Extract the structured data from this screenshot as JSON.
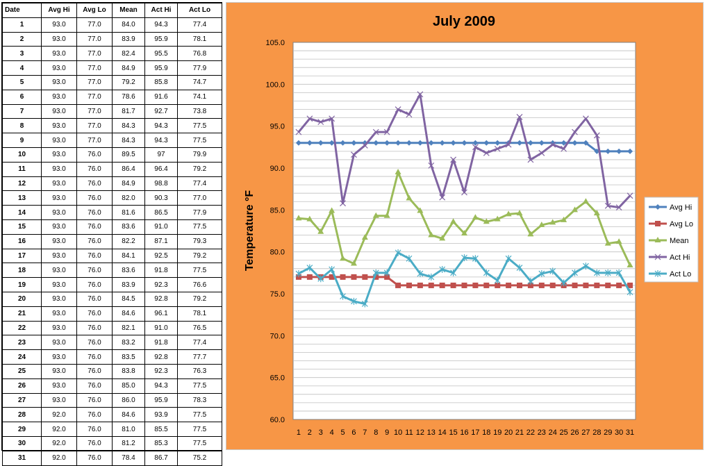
{
  "table": {
    "headers": [
      "Date",
      "Avg Hi",
      "Avg Lo",
      "Mean",
      "Act Hi",
      "Act Lo"
    ],
    "rows": [
      [
        "1",
        "93.0",
        "77.0",
        "84.0",
        "94.3",
        "77.4"
      ],
      [
        "2",
        "93.0",
        "77.0",
        "83.9",
        "95.9",
        "78.1"
      ],
      [
        "3",
        "93.0",
        "77.0",
        "82.4",
        "95.5",
        "76.8"
      ],
      [
        "4",
        "93.0",
        "77.0",
        "84.9",
        "95.9",
        "77.9"
      ],
      [
        "5",
        "93.0",
        "77.0",
        "79.2",
        "85.8",
        "74.7"
      ],
      [
        "6",
        "93.0",
        "77.0",
        "78.6",
        "91.6",
        "74.1"
      ],
      [
        "7",
        "93.0",
        "77.0",
        "81.7",
        "92.7",
        "73.8"
      ],
      [
        "8",
        "93.0",
        "77.0",
        "84.3",
        "94.3",
        "77.5"
      ],
      [
        "9",
        "93.0",
        "77.0",
        "84.3",
        "94.3",
        "77.5"
      ],
      [
        "10",
        "93.0",
        "76.0",
        "89.5",
        "97",
        "79.9"
      ],
      [
        "11",
        "93.0",
        "76.0",
        "86.4",
        "96.4",
        "79.2"
      ],
      [
        "12",
        "93.0",
        "76.0",
        "84.9",
        "98.8",
        "77.4"
      ],
      [
        "13",
        "93.0",
        "76.0",
        "82.0",
        "90.3",
        "77.0"
      ],
      [
        "14",
        "93.0",
        "76.0",
        "81.6",
        "86.5",
        "77.9"
      ],
      [
        "15",
        "93.0",
        "76.0",
        "83.6",
        "91.0",
        "77.5"
      ],
      [
        "16",
        "93.0",
        "76.0",
        "82.2",
        "87.1",
        "79.3"
      ],
      [
        "17",
        "93.0",
        "76.0",
        "84.1",
        "92.5",
        "79.2"
      ],
      [
        "18",
        "93.0",
        "76.0",
        "83.6",
        "91.8",
        "77.5"
      ],
      [
        "19",
        "93.0",
        "76.0",
        "83.9",
        "92.3",
        "76.6"
      ],
      [
        "20",
        "93.0",
        "76.0",
        "84.5",
        "92.8",
        "79.2"
      ],
      [
        "21",
        "93.0",
        "76.0",
        "84.6",
        "96.1",
        "78.1"
      ],
      [
        "22",
        "93.0",
        "76.0",
        "82.1",
        "91.0",
        "76.5"
      ],
      [
        "23",
        "93.0",
        "76.0",
        "83.2",
        "91.8",
        "77.4"
      ],
      [
        "24",
        "93.0",
        "76.0",
        "83.5",
        "92.8",
        "77.7"
      ],
      [
        "25",
        "93.0",
        "76.0",
        "83.8",
        "92.3",
        "76.3"
      ],
      [
        "26",
        "93.0",
        "76.0",
        "85.0",
        "94.3",
        "77.5"
      ],
      [
        "27",
        "93.0",
        "76.0",
        "86.0",
        "95.9",
        "78.3"
      ],
      [
        "28",
        "92.0",
        "76.0",
        "84.6",
        "93.9",
        "77.5"
      ],
      [
        "29",
        "92.0",
        "76.0",
        "81.0",
        "85.5",
        "77.5"
      ],
      [
        "30",
        "92.0",
        "76.0",
        "81.2",
        "85.3",
        "77.5"
      ],
      [
        "31",
        "92.0",
        "76.0",
        "78.4",
        "86.7",
        "75.2"
      ]
    ]
  },
  "chart_data": {
    "type": "line",
    "title": "July 2009",
    "xlabel": "",
    "ylabel": "Temperature °F",
    "x": [
      1,
      2,
      3,
      4,
      5,
      6,
      7,
      8,
      9,
      10,
      11,
      12,
      13,
      14,
      15,
      16,
      17,
      18,
      19,
      20,
      21,
      22,
      23,
      24,
      25,
      26,
      27,
      28,
      29,
      30,
      31
    ],
    "x_tick_labels": [
      "1",
      "2",
      "3",
      "4",
      "5",
      "6",
      "7",
      "8",
      "9",
      "10",
      "11",
      "12",
      "13",
      "14",
      "15",
      "16",
      "17",
      "18",
      "19",
      "20",
      "21",
      "22",
      "23",
      "24",
      "25",
      "26",
      "27",
      "28",
      "29",
      "30",
      "31"
    ],
    "ylim": [
      60.0,
      105.0
    ],
    "y_tick_labels": [
      "60.0",
      "65.0",
      "70.0",
      "75.0",
      "80.0",
      "85.0",
      "90.0",
      "95.0",
      "100.0",
      "105.0"
    ],
    "grid": true,
    "legend_position": "right",
    "background_color": "#F79646",
    "plot_background": "#ffffff",
    "series": [
      {
        "name": "Avg Hi",
        "color": "#4F81BD",
        "marker": "diamond",
        "values": [
          93,
          93,
          93,
          93,
          93,
          93,
          93,
          93,
          93,
          93,
          93,
          93,
          93,
          93,
          93,
          93,
          93,
          93,
          93,
          93,
          93,
          93,
          93,
          93,
          93,
          93,
          93,
          92,
          92,
          92,
          92
        ]
      },
      {
        "name": "Avg Lo",
        "color": "#C0504D",
        "marker": "square",
        "values": [
          77,
          77,
          77,
          77,
          77,
          77,
          77,
          77,
          77,
          76,
          76,
          76,
          76,
          76,
          76,
          76,
          76,
          76,
          76,
          76,
          76,
          76,
          76,
          76,
          76,
          76,
          76,
          76,
          76,
          76,
          76
        ]
      },
      {
        "name": "Mean",
        "color": "#9BBB59",
        "marker": "triangle",
        "values": [
          84.0,
          83.9,
          82.4,
          84.9,
          79.2,
          78.6,
          81.7,
          84.3,
          84.3,
          89.5,
          86.4,
          84.9,
          82.0,
          81.6,
          83.6,
          82.2,
          84.1,
          83.6,
          83.9,
          84.5,
          84.6,
          82.1,
          83.2,
          83.5,
          83.8,
          85.0,
          86.0,
          84.6,
          81.0,
          81.2,
          78.4
        ]
      },
      {
        "name": "Act Hi",
        "color": "#8064A2",
        "marker": "x",
        "values": [
          94.3,
          95.9,
          95.5,
          95.9,
          85.8,
          91.6,
          92.7,
          94.3,
          94.3,
          97,
          96.4,
          98.8,
          90.3,
          86.5,
          91.0,
          87.1,
          92.5,
          91.8,
          92.3,
          92.8,
          96.1,
          91.0,
          91.8,
          92.8,
          92.3,
          94.3,
          95.9,
          93.9,
          85.5,
          85.3,
          86.7
        ]
      },
      {
        "name": "Act Lo",
        "color": "#4BACC6",
        "marker": "star",
        "values": [
          77.4,
          78.1,
          76.8,
          77.9,
          74.7,
          74.1,
          73.8,
          77.5,
          77.5,
          79.9,
          79.2,
          77.4,
          77.0,
          77.9,
          77.5,
          79.3,
          79.2,
          77.5,
          76.6,
          79.2,
          78.1,
          76.5,
          77.4,
          77.7,
          76.3,
          77.5,
          78.3,
          77.5,
          77.5,
          77.5,
          75.2
        ]
      }
    ]
  }
}
